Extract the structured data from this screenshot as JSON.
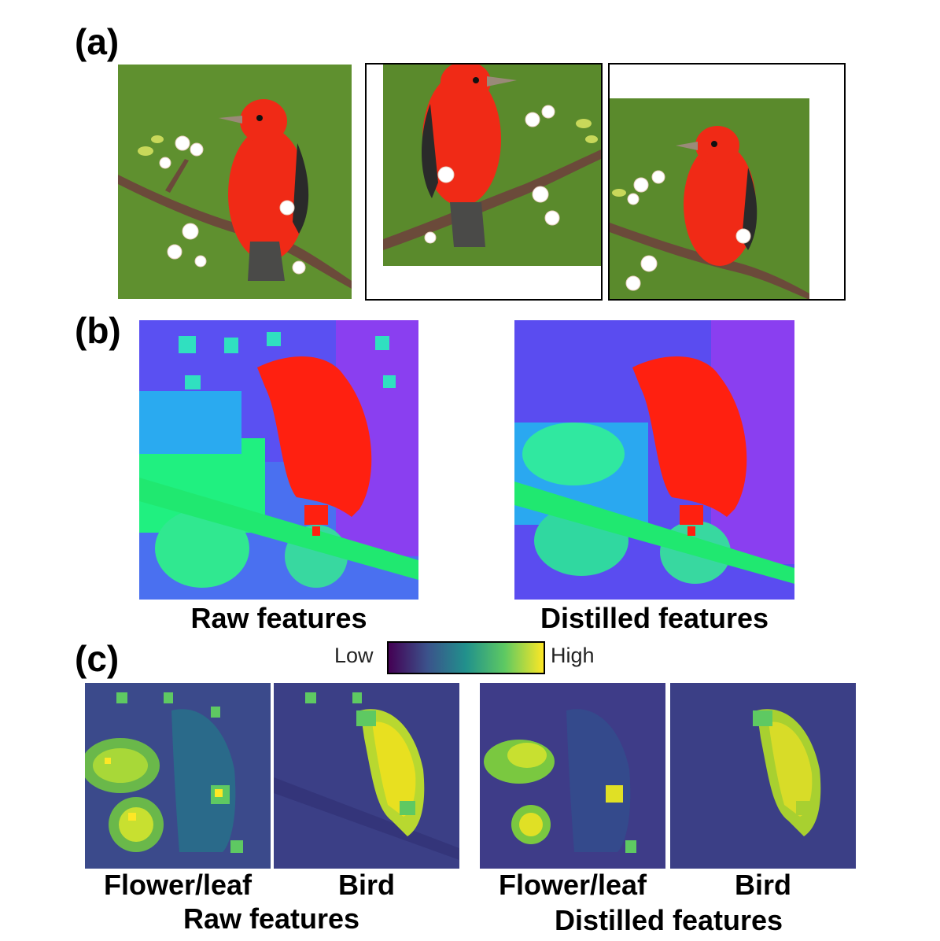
{
  "panels": {
    "a": {
      "label": "(a)"
    },
    "b": {
      "label": "(b)",
      "raw_caption": "Raw features",
      "distilled_caption": "Distilled features"
    },
    "c": {
      "label": "(c)",
      "colorbar": {
        "low": "Low",
        "high": "High",
        "colors": [
          "#440154",
          "#3b528b",
          "#21918c",
          "#5ec962",
          "#fde725"
        ]
      },
      "raw": {
        "left": "Flower/leaf",
        "right": "Bird",
        "group": "Raw features"
      },
      "distilled": {
        "left": "Flower/leaf",
        "right": "Bird",
        "group": "Distilled features"
      }
    }
  },
  "colors": {
    "bird_red": "#f02a16",
    "background_green": "#5a8a2c",
    "branch_brown": "#6b4a3a"
  }
}
